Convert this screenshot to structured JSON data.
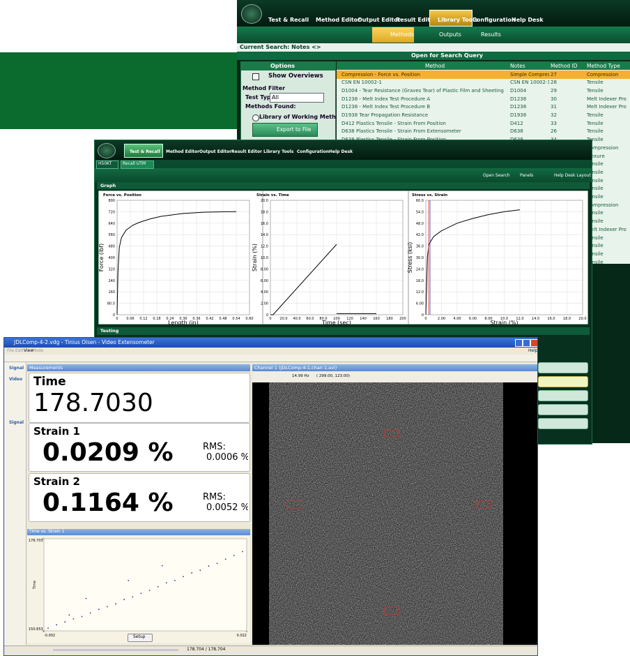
{
  "library_window": {
    "menu": [
      "Test & Recall",
      "Method Editor",
      "Output Editor",
      "Result Editor",
      "Library Tools",
      "Configuration",
      "Help Desk"
    ],
    "subtabs": [
      "Methods",
      "Outputs",
      "Results"
    ],
    "current_search": "Current Search:  Notes <>",
    "search_bar": "Open for Search Query",
    "options": {
      "title": "Options",
      "show_overviews": "Show Overviews",
      "method_filter": "Method Filter",
      "test_type_label": "Test Type:",
      "test_type_value": "All",
      "methods_found": "Methods Found:",
      "library_option": "Library of Working Methods",
      "export": "Export to File"
    },
    "table": {
      "columns": [
        "Method",
        "Notes",
        "Method ID",
        "Method Type"
      ],
      "rows": [
        [
          "Compression - Force vs. Position",
          "Simple Compression",
          "27",
          "Compression"
        ],
        [
          "CSN EN 10002-1",
          "CSN EN 10002-1",
          "28",
          "Tensile"
        ],
        [
          "D1004 - Tear Resistance (Graves Tear) of Plastic Film and Sheeting",
          "D1004",
          "29",
          "Tensile"
        ],
        [
          "D1238 - Melt Index Test Procedure A",
          "D1238",
          "30",
          "Melt Indexer Pro"
        ],
        [
          "D1238 - Melt Index Test Procedure B",
          "D1238",
          "31",
          "Melt Indexer Pro"
        ],
        [
          "D1938 Tear Propagation Resistance",
          "D1938",
          "32",
          "Tensile"
        ],
        [
          "D412 Plastics Tensile - Strain From Position",
          "D412",
          "33",
          "Tensile"
        ],
        [
          "D638 Plastics Tensile - Strain From Extensometer",
          "D638",
          "26",
          "Tensile"
        ],
        [
          "D638 Plastics Tensile - Strain From Position",
          "D638",
          "34",
          "Tensile"
        ]
      ],
      "more_method_types": [
        "Compression",
        "Flexure",
        "Tensile",
        "Tensile",
        "Tensile",
        "Tensile",
        "Tensile",
        "Compression",
        "Tensile",
        "Tensile",
        "Melt Indexer Pro",
        "Tensile",
        "Tensile",
        "Tensile",
        "Tensile"
      ]
    }
  },
  "test_window": {
    "menu": [
      "Test & Recall",
      "Method Editor",
      "Output Editor",
      "Result Editor",
      "Library Tools",
      "Configuration",
      "Help Desk"
    ],
    "tabs": [
      "H50KT",
      "Recall UTM"
    ],
    "toolbar": [
      "Open Search",
      "Panels",
      "Help Desk Layout"
    ],
    "graph_panel": "Graph",
    "testing_panel": "Testing",
    "graphs": [
      {
        "type": "line",
        "title": "Force vs. Position",
        "xlabel": "Length (in)",
        "ylabel": "Force (lbf)",
        "xlim": [
          0,
          0.6
        ],
        "ylim": [
          0,
          800
        ],
        "xticks": [
          0,
          0.06,
          0.12,
          0.18,
          0.24,
          {
            "value": 0.3,
            "label": "0.30"
          },
          0.36,
          0.42,
          0.48,
          0.54,
          {
            "value": 0.6,
            "label": "0.60"
          }
        ],
        "yticks": [
          0,
          {
            "value": 80,
            "label": "80.0"
          },
          160,
          240,
          320,
          400,
          480,
          560,
          640,
          720,
          800
        ],
        "series": [
          {
            "color": "#000000",
            "x": [
              0,
              0.004,
              0.01,
              0.02,
              0.04,
              0.07,
              0.1,
              0.15,
              0.2,
              0.3,
              0.4,
              0.5,
              0.54
            ],
            "y": [
              0,
              300,
              470,
              540,
              590,
              625,
              645,
              670,
              688,
              708,
              717,
              720,
              721
            ]
          }
        ]
      },
      {
        "type": "line",
        "title": "Strain vs. Time",
        "xlabel": "Time (sec)",
        "ylabel": "Strain (%)",
        "xlim": [
          0,
          200
        ],
        "ylim": [
          0,
          20
        ],
        "xticks": [
          0,
          {
            "value": 20,
            "label": "20.0"
          },
          {
            "value": 40,
            "label": "40.0"
          },
          {
            "value": 60,
            "label": "60.0"
          },
          {
            "value": 80,
            "label": "80.0"
          },
          100,
          120,
          140,
          160,
          180,
          200
        ],
        "yticks": [
          0,
          {
            "value": 2,
            "label": "2.00"
          },
          {
            "value": 4,
            "label": "4.00"
          },
          {
            "value": 6,
            "label": "6.00"
          },
          {
            "value": 8,
            "label": "8.00"
          },
          {
            "value": 10,
            "label": "10.0"
          },
          {
            "value": 12,
            "label": "12.0"
          },
          {
            "value": 14,
            "label": "14.0"
          },
          {
            "value": 16,
            "label": "16.0"
          },
          {
            "value": 18,
            "label": "18.0"
          },
          {
            "value": 20,
            "label": "20.0"
          }
        ],
        "series": [
          {
            "color": "#000000",
            "x": [
              0,
              4,
              100
            ],
            "y": [
              0,
              0,
              12.3
            ]
          },
          {
            "color": "#000000",
            "x": [
              100,
              160
            ],
            "y": [
              0.2,
              0.2
            ]
          }
        ]
      },
      {
        "type": "line",
        "title": "Stress vs. Strain",
        "xlabel": "Strain (%)",
        "ylabel": "Stress (ksi)",
        "xlim": [
          0,
          20
        ],
        "ylim": [
          0,
          60
        ],
        "xticks": [
          0,
          {
            "value": 2,
            "label": "2.00"
          },
          {
            "value": 4,
            "label": "4.00"
          },
          {
            "value": 6,
            "label": "6.00"
          },
          {
            "value": 8,
            "label": "8.00"
          },
          {
            "value": 10,
            "label": "10.0"
          },
          {
            "value": 12,
            "label": "12.0"
          },
          {
            "value": 14,
            "label": "14.0"
          },
          {
            "value": 16,
            "label": "16.0"
          },
          {
            "value": 18,
            "label": "18.0"
          },
          {
            "value": 20,
            "label": "20.0"
          }
        ],
        "yticks": [
          0,
          {
            "value": 6,
            "label": "6.00"
          },
          {
            "value": 12,
            "label": "12.0"
          },
          {
            "value": 18,
            "label": "18.0"
          },
          {
            "value": 24,
            "label": "24.0"
          },
          {
            "value": 30,
            "label": "30.0"
          },
          {
            "value": 36,
            "label": "36.0"
          },
          {
            "value": 42,
            "label": "42.0"
          },
          {
            "value": 48,
            "label": "48.0"
          },
          {
            "value": 54,
            "label": "54.0"
          },
          {
            "value": 60,
            "label": "60.0"
          }
        ],
        "series": [
          {
            "color": "#000000",
            "x": [
              0,
              0.2,
              0.4,
              1,
              2,
              4,
              6,
              8,
              10,
              12
            ],
            "y": [
              0,
              30,
              37,
              41,
              44,
              48,
              50.5,
              52.5,
              54,
              55
            ]
          }
        ]
      }
    ]
  },
  "video_window": {
    "title": "JDLComp-4-2.vdg - Tinius Olsen - Video Extensometer",
    "menu": [
      "File",
      "Edit",
      "View",
      "Mode"
    ],
    "help": "Help",
    "sidebar": [
      "Signal",
      "Video",
      "Signal"
    ],
    "measurements": {
      "title": "Measurements",
      "time_label": "Time",
      "time_value": "178.7030",
      "strains": [
        {
          "label": "Strain 1",
          "value": "0.0209 %",
          "rms_label": "RMS:",
          "rms": "0.0006 %"
        },
        {
          "label": "Strain 2",
          "value": "0.1164 %",
          "rms_label": "RMS:",
          "rms": "0.0052 %"
        }
      ]
    },
    "graph": {
      "type": "scatter",
      "title": "Time vs. Strain 1",
      "xlabel": "Strain 1",
      "ylabel": "Time",
      "xlim": [
        -0.002,
        0.022
      ],
      "ylim": [
        150.653,
        178.703
      ],
      "xticks": [
        -0.002,
        0.022
      ],
      "yticks": [
        150.653,
        178.703
      ],
      "color": "#2a3a8a",
      "x": [
        -0.0015,
        -0.0005,
        0.0005,
        0.0015,
        0.0025,
        0.0035,
        0.0045,
        0.0055,
        0.0065,
        0.0075,
        0.0085,
        0.0095,
        0.0105,
        0.0115,
        0.0125,
        0.0135,
        0.0145,
        0.0155,
        0.0165,
        0.0175,
        0.0185,
        0.0195,
        0.0205,
        0.0215,
        0.003,
        0.008,
        0.012,
        0.001
      ],
      "y": [
        151.5,
        152.5,
        153.4,
        154.3,
        155.0,
        156.1,
        157.2,
        158.0,
        158.9,
        160.2,
        161.0,
        162.1,
        163.0,
        164.1,
        165.3,
        166.0,
        167.2,
        168.3,
        169.1,
        170.4,
        171.2,
        172.5,
        173.6,
        174.8,
        160.5,
        166.0,
        170.5,
        155.5
      ]
    },
    "setup": "Setup",
    "channel": {
      "title": "Channel 1 (JDLComp-4-1.chan 1.avi)",
      "rate": "14.99 Hz",
      "coords": "( 299.00, 123.00)"
    },
    "status": "178.704 / 178.704"
  }
}
